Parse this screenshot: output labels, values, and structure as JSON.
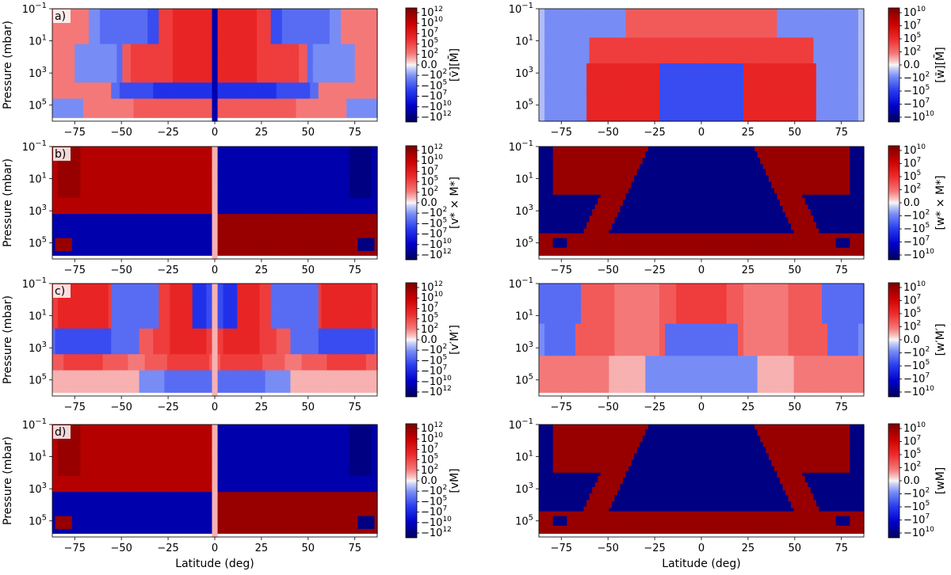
{
  "figure": {
    "x_axis_label": "Latitude (deg)",
    "y_axis_label": "Pressure (mbar)",
    "x_ticks": [
      "−75",
      "−50",
      "−25",
      "0",
      "25",
      "50",
      "75"
    ],
    "y_ticks": [
      {
        "base": "10",
        "exp": "−1"
      },
      {
        "base": "10",
        "exp": "1"
      },
      {
        "base": "10",
        "exp": "3"
      },
      {
        "base": "10",
        "exp": "5"
      }
    ],
    "colors": {
      "neg": "#00005a",
      "mid": "#f7f7f7",
      "pos": "#7a0000"
    }
  },
  "colorbars": {
    "left": [
      {
        "base": "10",
        "exp": "12"
      },
      {
        "base": "10",
        "exp": "10"
      },
      {
        "base": "10",
        "exp": "7"
      },
      {
        "base": "10",
        "exp": "5"
      },
      {
        "base": "10",
        "exp": "2"
      },
      {
        "base": "0.0",
        "exp": ""
      },
      {
        "base": "−10",
        "exp": "2"
      },
      {
        "base": "−10",
        "exp": "5"
      },
      {
        "base": "−10",
        "exp": "7"
      },
      {
        "base": "−10",
        "exp": "10"
      },
      {
        "base": "−10",
        "exp": "12"
      }
    ],
    "right": [
      {
        "base": "10",
        "exp": "10"
      },
      {
        "base": "10",
        "exp": "7"
      },
      {
        "base": "10",
        "exp": "5"
      },
      {
        "base": "10",
        "exp": "2"
      },
      {
        "base": "0.0",
        "exp": ""
      },
      {
        "base": "−10",
        "exp": "2"
      },
      {
        "base": "−10",
        "exp": "5"
      },
      {
        "base": "−10",
        "exp": "7"
      },
      {
        "base": "−10",
        "exp": "10"
      }
    ]
  },
  "chart_data": [
    {
      "type": "heatmap",
      "panel_label": "a)",
      "colorbar_label": "[v̄][M̄]",
      "xlim": [
        -87,
        87
      ],
      "ylim": [
        1000000,
        0.1
      ],
      "y_scale": "log",
      "x_ticks": [
        -75,
        -50,
        -25,
        0,
        25,
        50,
        75
      ],
      "y_ticks": [
        0.1,
        10,
        1000,
        100000
      ],
      "colorbar_ticks": [
        "10^12",
        "10^10",
        "10^7",
        "10^5",
        "10^2",
        "0.0",
        "-10^2",
        "-10^5",
        "-10^7",
        "-10^10",
        "-10^12"
      ],
      "pattern": "a",
      "scale": 0.55
    },
    {
      "type": "heatmap",
      "panel_label": "",
      "colorbar_label": "[w̄][M̄]",
      "xlim": [
        -87,
        87
      ],
      "ylim": [
        1000000,
        0.1
      ],
      "y_scale": "log",
      "x_ticks": [
        -75,
        -50,
        -25,
        0,
        25,
        50,
        75
      ],
      "y_ticks": [
        0.1,
        10,
        1000,
        100000
      ],
      "colorbar_ticks": [
        "10^10",
        "10^7",
        "10^5",
        "10^2",
        "0.0",
        "-10^2",
        "-10^5",
        "-10^7",
        "-10^10"
      ],
      "pattern": "aw",
      "scale": 0.55
    },
    {
      "type": "heatmap",
      "panel_label": "b)",
      "colorbar_label": "[v* × M*]",
      "xlim": [
        -87,
        87
      ],
      "ylim": [
        1000000,
        0.1
      ],
      "y_scale": "log",
      "x_ticks": [
        -75,
        -50,
        -25,
        0,
        25,
        50,
        75
      ],
      "y_ticks": [
        0.1,
        10,
        1000,
        100000
      ],
      "colorbar_ticks": [
        "10^12",
        "10^10",
        "10^7",
        "10^5",
        "10^2",
        "0.0",
        "-10^2",
        "-10^5",
        "-10^7",
        "-10^10",
        "-10^12"
      ],
      "pattern": "b",
      "scale": 0.97
    },
    {
      "type": "heatmap",
      "panel_label": "",
      "colorbar_label": "[w* × M*]",
      "xlim": [
        -87,
        87
      ],
      "ylim": [
        1000000,
        0.1
      ],
      "y_scale": "log",
      "x_ticks": [
        -75,
        -50,
        -25,
        0,
        25,
        50,
        75
      ],
      "y_ticks": [
        0.1,
        10,
        1000,
        100000
      ],
      "colorbar_ticks": [
        "10^10",
        "10^7",
        "10^5",
        "10^2",
        "0.0",
        "-10^2",
        "-10^5",
        "-10^7",
        "-10^10"
      ],
      "pattern": "bw",
      "scale": 0.97
    },
    {
      "type": "heatmap",
      "panel_label": "c)",
      "colorbar_label": "[v′M′]",
      "xlim": [
        -87,
        87
      ],
      "ylim": [
        1000000,
        0.1
      ],
      "y_scale": "log",
      "x_ticks": [
        -75,
        -50,
        -25,
        0,
        25,
        50,
        75
      ],
      "y_ticks": [
        0.1,
        10,
        1000,
        100000
      ],
      "colorbar_ticks": [
        "10^12",
        "10^10",
        "10^7",
        "10^5",
        "10^2",
        "0.0",
        "-10^2",
        "-10^5",
        "-10^7",
        "-10^10",
        "-10^12"
      ],
      "pattern": "c",
      "scale": 0.62
    },
    {
      "type": "heatmap",
      "panel_label": "",
      "colorbar_label": "[w′M′]",
      "xlim": [
        -87,
        87
      ],
      "ylim": [
        1000000,
        0.1
      ],
      "y_scale": "log",
      "x_ticks": [
        -75,
        -50,
        -25,
        0,
        25,
        50,
        75
      ],
      "y_ticks": [
        0.1,
        10,
        1000,
        100000
      ],
      "colorbar_ticks": [
        "10^10",
        "10^7",
        "10^5",
        "10^2",
        "0.0",
        "-10^2",
        "-10^5",
        "-10^7",
        "-10^10"
      ],
      "pattern": "cw",
      "scale": 0.6
    },
    {
      "type": "heatmap",
      "panel_label": "d)",
      "colorbar_label": "[vM]",
      "xlim": [
        -87,
        87
      ],
      "ylim": [
        1000000,
        0.1
      ],
      "y_scale": "log",
      "x_ticks": [
        -75,
        -50,
        -25,
        0,
        25,
        50,
        75
      ],
      "y_ticks": [
        0.1,
        10,
        1000,
        100000
      ],
      "colorbar_ticks": [
        "10^12",
        "10^10",
        "10^7",
        "10^5",
        "10^2",
        "0.0",
        "-10^2",
        "-10^5",
        "-10^7",
        "-10^10",
        "-10^12"
      ],
      "pattern": "b",
      "scale": 0.97
    },
    {
      "type": "heatmap",
      "panel_label": "",
      "colorbar_label": "[wM]",
      "xlim": [
        -87,
        87
      ],
      "ylim": [
        1000000,
        0.1
      ],
      "y_scale": "log",
      "x_ticks": [
        -75,
        -50,
        -25,
        0,
        25,
        50,
        75
      ],
      "y_ticks": [
        0.1,
        10,
        1000,
        100000
      ],
      "colorbar_ticks": [
        "10^10",
        "10^7",
        "10^5",
        "10^2",
        "0.0",
        "-10^2",
        "-10^5",
        "-10^7",
        "-10^10"
      ],
      "pattern": "bw",
      "scale": 0.97
    }
  ]
}
